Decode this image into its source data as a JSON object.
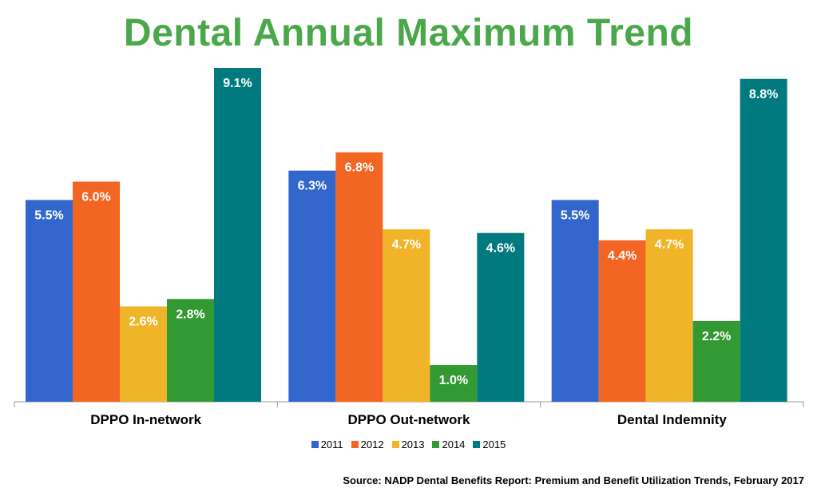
{
  "chart_data": {
    "type": "bar",
    "title": "Dental Annual Maximum Trend",
    "categories": [
      "DPPO In-network",
      "DPPO Out-network",
      "Dental Indemnity"
    ],
    "series": [
      {
        "name": "2011",
        "color": "#3366cc",
        "values": [
          5.5,
          6.3,
          5.5
        ],
        "labels": [
          "5.5%",
          "6.3%",
          "5.5%"
        ]
      },
      {
        "name": "2012",
        "color": "#f26522",
        "values": [
          6.0,
          6.8,
          4.4
        ],
        "labels": [
          "6.0%",
          "6.8%",
          "4.4%"
        ]
      },
      {
        "name": "2013",
        "color": "#f0b429",
        "values": [
          2.6,
          4.7,
          4.7
        ],
        "labels": [
          "2.6%",
          "4.7%",
          "4.7%"
        ]
      },
      {
        "name": "2014",
        "color": "#339933",
        "values": [
          2.8,
          1.0,
          2.2
        ],
        "labels": [
          "2.8%",
          "1.0%",
          "2.2%"
        ]
      },
      {
        "name": "2015",
        "color": "#007a7f",
        "values": [
          9.1,
          4.6,
          8.8
        ],
        "labels": [
          "9.1%",
          "4.6%",
          "8.8%"
        ]
      }
    ],
    "ylim": [
      0,
      9.1
    ],
    "grid": false,
    "legend_position": "bottom"
  },
  "source": "Source: NADP Dental Benefits Report: Premium and Benefit Utilization Trends, February 2017"
}
